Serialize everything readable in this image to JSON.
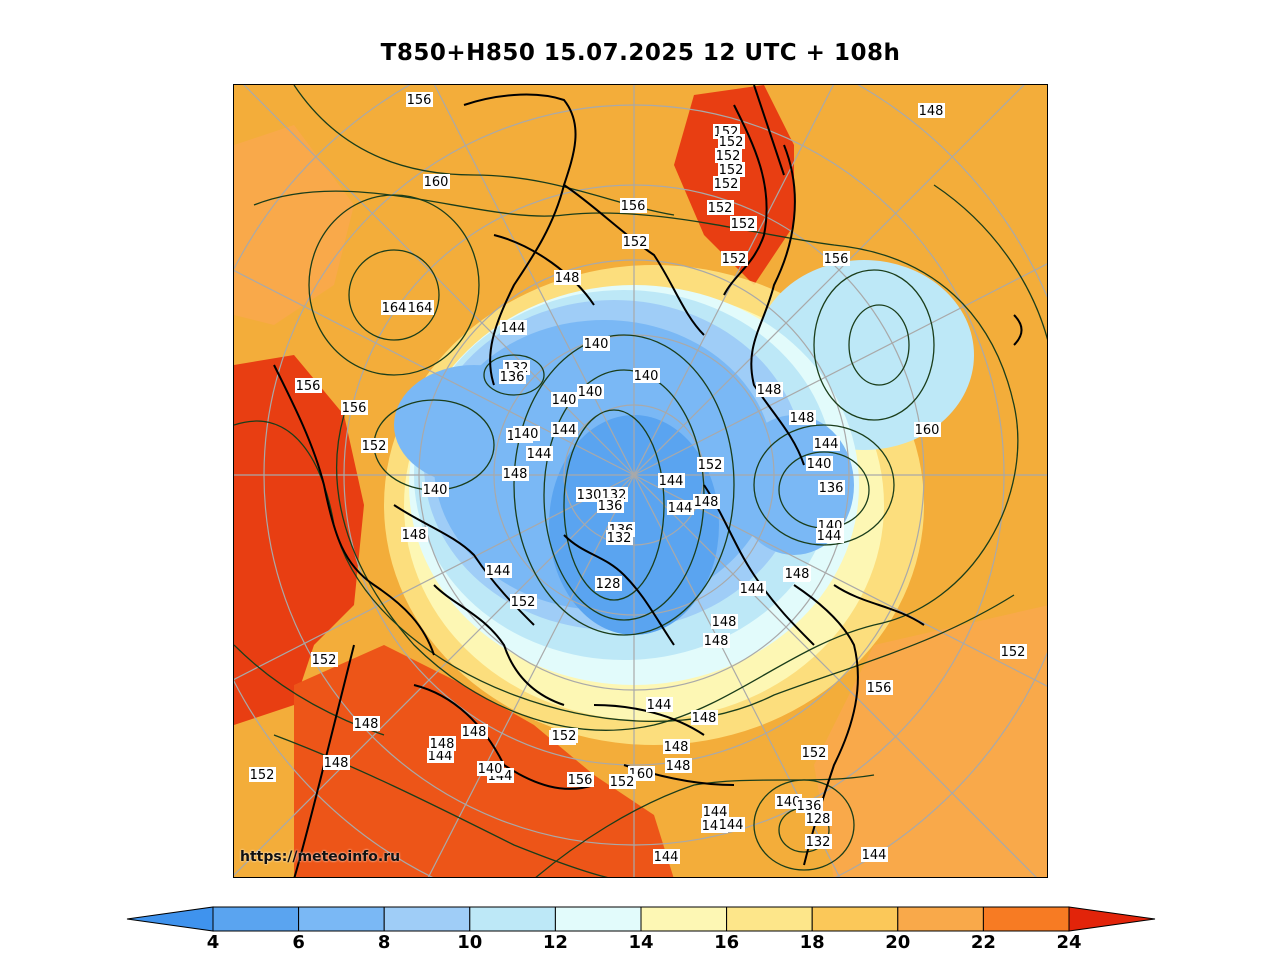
{
  "title": "T850+H850 15.07.2025 12 UTC + 108h",
  "watermark": "https://meteoinfo.ru",
  "legend": {
    "ticks": [
      "4",
      "6",
      "8",
      "10",
      "12",
      "14",
      "16",
      "18",
      "20",
      "22",
      "24"
    ],
    "colors": [
      "#5aa4f0",
      "#7ab8f5",
      "#9fcdf7",
      "#bde8f7",
      "#e2fbfb",
      "#fdf7b4",
      "#fde68a",
      "#fbc859",
      "#f9a94a",
      "#f77b23",
      "#e83e12"
    ],
    "extend_low_color": "#3f93ee",
    "extend_high_color": "#e2240a"
  },
  "map": {
    "background_color": "#f3ad3a",
    "land_outline_color": "#000000",
    "contour_color": "#1a3d1a",
    "grid_color": "#a9a9a9",
    "contour_labels": [
      "156",
      "148",
      "152",
      "152",
      "152",
      "152",
      "152",
      "152",
      "152",
      "160",
      "156",
      "152",
      "148",
      "152",
      "156",
      "164",
      "164",
      "144",
      "132",
      "136",
      "140",
      "140",
      "140",
      "156",
      "156",
      "148",
      "148",
      "140",
      "144",
      "160",
      "152",
      "144",
      "140",
      "140",
      "144",
      "152",
      "144",
      "140",
      "148",
      "144",
      "136",
      "130",
      "132",
      "136",
      "140",
      "136",
      "144",
      "148",
      "144",
      "132",
      "128",
      "140",
      "148",
      "144",
      "148",
      "152",
      "144",
      "148",
      "148",
      "148",
      "152",
      "156",
      "152",
      "148",
      "144",
      "148",
      "144",
      "152",
      "148",
      "144",
      "140",
      "152",
      "156",
      "160",
      "152",
      "148",
      "148",
      "140",
      "136",
      "128",
      "132",
      "144",
      "144",
      "144",
      "144",
      "144",
      "152",
      "148",
      "152",
      "148"
    ]
  }
}
